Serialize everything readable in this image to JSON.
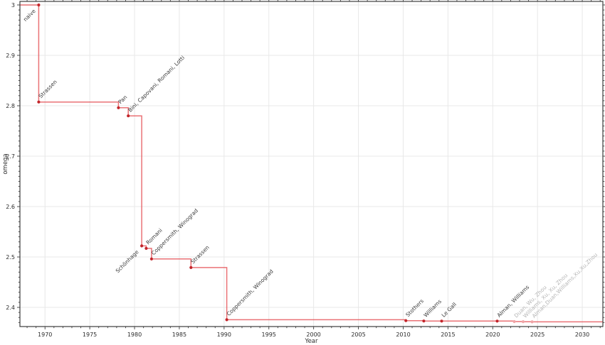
{
  "chart_data": {
    "type": "line",
    "subtype": "step-post-annotated",
    "title": "",
    "xlabel": "Year",
    "ylabel": "omega",
    "xlim": [
      1967.2,
      2032.3
    ],
    "ylim": [
      2.362,
      3.007
    ],
    "grid": true,
    "legend": "none",
    "x_ticks": [
      {
        "v": 1970,
        "label": "1970"
      },
      {
        "v": 1975,
        "label": "1975"
      },
      {
        "v": 1980,
        "label": "1980"
      },
      {
        "v": 1985,
        "label": "1985"
      },
      {
        "v": 1990,
        "label": "1990"
      },
      {
        "v": 1995,
        "label": "1995"
      },
      {
        "v": 2000,
        "label": "2000"
      },
      {
        "v": 2005,
        "label": "2005"
      },
      {
        "v": 2010,
        "label": "2010"
      },
      {
        "v": 2015,
        "label": "2015"
      },
      {
        "v": 2020,
        "label": "2020"
      },
      {
        "v": 2025,
        "label": "2025"
      },
      {
        "v": 2030,
        "label": "2030"
      }
    ],
    "y_ticks": [
      {
        "v": 2.4,
        "label": "2.4"
      },
      {
        "v": 2.5,
        "label": "2.5"
      },
      {
        "v": 2.6,
        "label": "2.6"
      },
      {
        "v": 2.7,
        "label": "2.7"
      },
      {
        "v": 2.8,
        "label": "2.8"
      },
      {
        "v": 2.9,
        "label": "2.9"
      },
      {
        "v": 3.0,
        "label": "3"
      }
    ],
    "x_minor_step": 1,
    "y_minor_step": 0.01,
    "points": [
      {
        "year": 1969.3,
        "omega": 3.0,
        "label": "naive",
        "faded": false,
        "side": "below"
      },
      {
        "year": 1969.3,
        "omega": 2.8074,
        "label": "Strassen",
        "faded": false,
        "side": "above"
      },
      {
        "year": 1978.2,
        "omega": 2.796,
        "label": "Pan",
        "faded": false,
        "side": "above"
      },
      {
        "year": 1979.3,
        "omega": 2.78,
        "label": "Bini, Capovani, Romani, Lotti",
        "faded": false,
        "side": "above"
      },
      {
        "year": 1980.8,
        "omega": 2.522,
        "label": "Schönhage",
        "faded": false,
        "side": "below"
      },
      {
        "year": 1981.3,
        "omega": 2.517,
        "label": "Romani",
        "faded": false,
        "side": "above"
      },
      {
        "year": 1981.9,
        "omega": 2.496,
        "label": "Coppersmith, Winograd",
        "faded": false,
        "side": "above"
      },
      {
        "year": 1986.3,
        "omega": 2.479,
        "label": "Strassen",
        "faded": false,
        "side": "above"
      },
      {
        "year": 1990.3,
        "omega": 2.3755,
        "label": "Coppersmith, Winograd",
        "faded": false,
        "side": "above"
      },
      {
        "year": 2010.3,
        "omega": 2.3737,
        "label": "Stothers",
        "faded": false,
        "side": "above"
      },
      {
        "year": 2012.3,
        "omega": 2.37293,
        "label": "Williams",
        "faded": false,
        "side": "above"
      },
      {
        "year": 2014.3,
        "omega": 2.37287,
        "label": "Le Gall",
        "faded": false,
        "side": "above"
      },
      {
        "year": 2020.5,
        "omega": 2.37286,
        "label": "Alman, Williams",
        "faded": false,
        "side": "above"
      },
      {
        "year": 2022.4,
        "omega": 2.37188,
        "label": "Duan, Wu, Zhou",
        "faded": true,
        "side": "above"
      },
      {
        "year": 2023.4,
        "omega": 2.37155,
        "label": "Williams, Xu, Xu, Zhou",
        "faded": true,
        "side": "above"
      },
      {
        "year": 2024.4,
        "omega": 2.37134,
        "label": "Alman,Duan,Williams,Xu,Xu,Zhou",
        "faded": true,
        "side": "above"
      }
    ],
    "colors": {
      "line": "#e23b41",
      "line_opacity": 0.72,
      "marker": "#c2252a",
      "marker_faded": "#efa4a6",
      "annotation": "#3a3a3a",
      "annotation_faded": "#b6b6b6",
      "grid": "#e8e8e8",
      "spine": "#3c3c3c",
      "tick_label": "#2b2b2b",
      "background": "#ffffff"
    }
  }
}
